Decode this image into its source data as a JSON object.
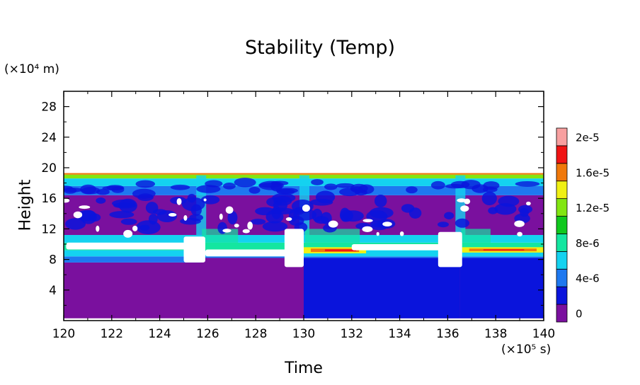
{
  "chart_data": {
    "type": "heatmap",
    "title": "Stability (Temp)",
    "xlabel": "Time",
    "ylabel": "Height",
    "x_unit": "(×10⁵ s)",
    "y_unit": "(×10⁴ m)",
    "xlim": [
      120,
      140
    ],
    "ylim": [
      0,
      30
    ],
    "xticks": [
      "120",
      "122",
      "124",
      "126",
      "128",
      "130",
      "132",
      "134",
      "136",
      "138",
      "140"
    ],
    "yticks": [
      "4",
      "8",
      "12",
      "16",
      "20",
      "24",
      "28"
    ],
    "colorbar": {
      "labels": [
        "0",
        "4e-6",
        "8e-6",
        "1.2e-5",
        "1.6e-5",
        "2e-5"
      ],
      "colors": [
        "#7a109e",
        "#0a14dc",
        "#1e78f0",
        "#14d2f0",
        "#14e6a0",
        "#10c81e",
        "#82e612",
        "#f0f014",
        "#f0780a",
        "#f01414",
        "#f8a0a0"
      ]
    },
    "bands": [
      {
        "y": [
          0.3,
          7.6
        ],
        "color": "#7a109e"
      },
      {
        "y": [
          7.6,
          8.4
        ],
        "color": "#1e78f0"
      },
      {
        "y": [
          8.4,
          9.2
        ],
        "color": "#14d2f0"
      },
      {
        "y": [
          9.2,
          10.2
        ],
        "color": "#14e6a0"
      },
      {
        "y": [
          10.2,
          11.2
        ],
        "color": "#14d2f0"
      },
      {
        "y": [
          11.2,
          16.4
        ],
        "color": "#7a109e"
      },
      {
        "y": [
          16.4,
          17.6
        ],
        "color": "#1e78f0"
      },
      {
        "y": [
          17.6,
          18.6
        ],
        "color": "#14d2f0"
      },
      {
        "y": [
          18.6,
          19.1
        ],
        "color": "#82e612"
      },
      {
        "y": [
          19.1,
          19.3
        ],
        "color": "#f0780a"
      }
    ],
    "episodes": [
      {
        "x": [
          125.7,
          130.0
        ],
        "low_color": "#7a109e"
      },
      {
        "x": [
          130.0,
          136.5
        ],
        "low_color": "#0a14dc"
      },
      {
        "x": [
          136.5,
          140.0
        ],
        "low_color": "#0a14dc"
      }
    ],
    "hot_layers": [
      {
        "x": [
          130.0,
          132.6
        ],
        "y": [
          8.8,
          9.6
        ]
      },
      {
        "x": [
          136.6,
          140.0
        ],
        "y": [
          8.9,
          9.6
        ]
      }
    ],
    "white_regions": [
      {
        "x": [
          120.1,
          125.7
        ],
        "y": [
          9.3,
          10.2
        ]
      },
      {
        "x": [
          125.0,
          125.9
        ],
        "y": [
          7.6,
          11.0
        ]
      },
      {
        "x": [
          125.9,
          129.8
        ],
        "y": [
          8.4,
          9.3
        ]
      },
      {
        "x": [
          129.2,
          130.0
        ],
        "y": [
          7.0,
          12.0
        ]
      },
      {
        "x": [
          132.0,
          136.4
        ],
        "y": [
          9.2,
          10.0
        ]
      },
      {
        "x": [
          135.6,
          136.6
        ],
        "y": [
          7.0,
          11.6
        ]
      }
    ]
  }
}
